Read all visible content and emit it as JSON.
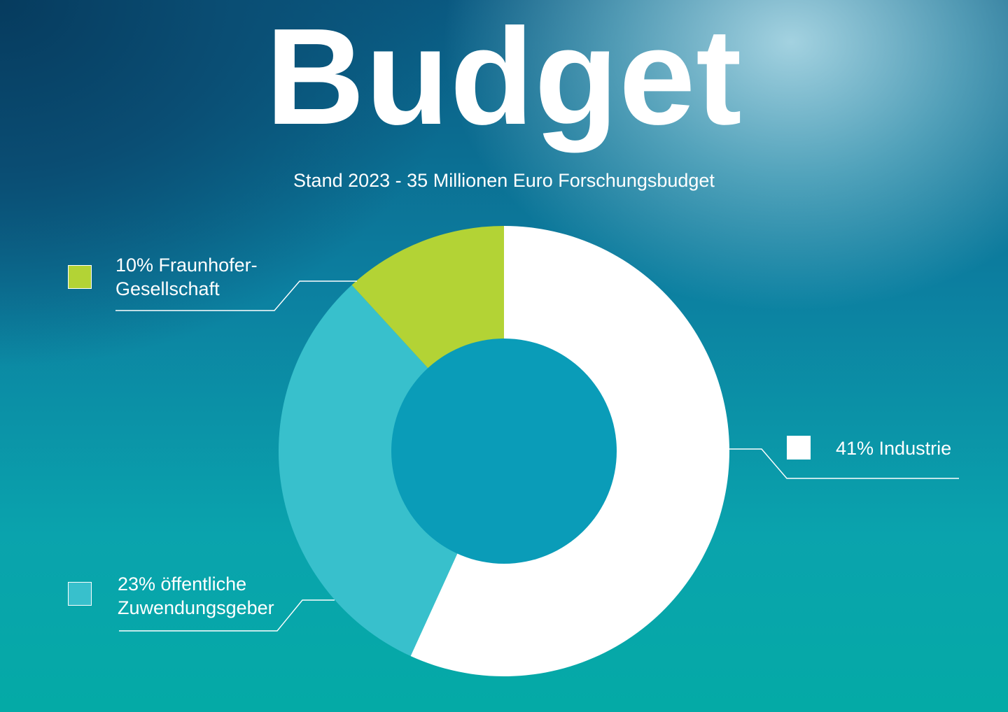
{
  "chart_data": {
    "type": "pie",
    "title": "Budget",
    "subtitle": "Stand 2023 - 35 Millionen Euro Forschungsbudget",
    "slices": [
      {
        "label_line1": "41% Industrie",
        "label_line2": "",
        "value": 41,
        "color": "#ffffff",
        "display_share": 0.568
      },
      {
        "label_line1": "23% öffentliche",
        "label_line2": "Zuwendungsgeber",
        "value": 23,
        "color": "#38c0cc",
        "display_share": 0.314
      },
      {
        "label_line1": "10% Fraunhofer-",
        "label_line2": "Gesellschaft",
        "value": 10,
        "color": "#b3d335",
        "display_share": 0.118
      }
    ],
    "hole_color": "#0a9cb8",
    "swatch_border": "#ffffff"
  }
}
